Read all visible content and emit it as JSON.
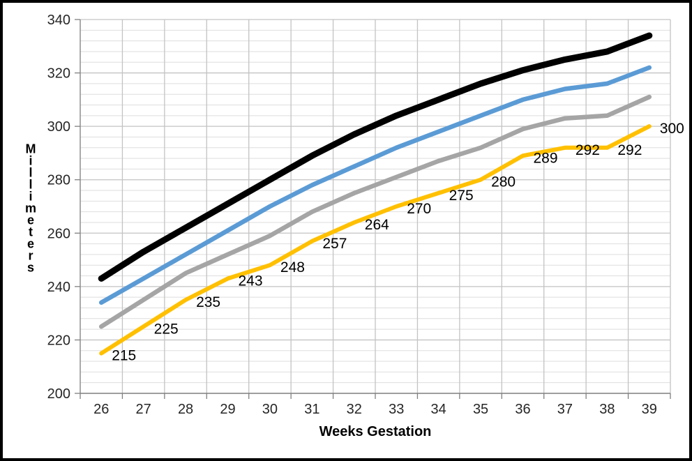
{
  "page": {
    "background": "#FFFFFF",
    "frame_color": "#000000"
  },
  "chart_data": {
    "type": "line",
    "title": "",
    "xlabel": "Weeks Gestation",
    "ylabel": "Millimeters",
    "x": [
      26,
      27,
      28,
      29,
      30,
      31,
      32,
      33,
      34,
      35,
      36,
      37,
      38,
      39
    ],
    "x_tick_labels": [
      "26",
      "27",
      "28",
      "29",
      "30",
      "31",
      "32",
      "33",
      "34",
      "35",
      "36",
      "37",
      "38",
      "39"
    ],
    "ylim": [
      200,
      340
    ],
    "y_major_step": 20,
    "y_minor_step": 4,
    "y_tick_labels": [
      "200",
      "220",
      "240",
      "260",
      "280",
      "300",
      "320",
      "340"
    ],
    "legend": "none",
    "grid": {
      "major_color": "#C3C3C3",
      "minor_color": "#DEDEDE",
      "vertical_color": "#C3C3C3",
      "axis_color": "#7F7F7F",
      "tick_label_color": "#262626",
      "data_label_color": "#000000"
    },
    "series": [
      {
        "name": "upper-black",
        "color": "#000000",
        "stroke_width": 9,
        "data_labels": false,
        "values": [
          243,
          253,
          262,
          271,
          280,
          289,
          297,
          304,
          310,
          316,
          321,
          325,
          328,
          334
        ]
      },
      {
        "name": "blue",
        "color": "#5B9BD5",
        "stroke_width": 6.5,
        "data_labels": false,
        "values": [
          234,
          243,
          252,
          261,
          270,
          278,
          285,
          292,
          298,
          304,
          310,
          314,
          316,
          322
        ]
      },
      {
        "name": "gray",
        "color": "#A5A5A5",
        "stroke_width": 6.5,
        "data_labels": false,
        "values": [
          225,
          235,
          245,
          252,
          259,
          268,
          275,
          281,
          287,
          292,
          299,
          303,
          304,
          311
        ]
      },
      {
        "name": "gold",
        "color": "#FFC000",
        "stroke_width": 6,
        "data_labels": true,
        "values": [
          215,
          225,
          235,
          243,
          248,
          257,
          264,
          270,
          275,
          280,
          289,
          292,
          292,
          300
        ],
        "label_texts": [
          "215",
          "225",
          "235",
          "243",
          "248",
          "257",
          "264",
          "270",
          "275",
          "280",
          "289",
          "292",
          "292",
          "300"
        ]
      }
    ]
  }
}
